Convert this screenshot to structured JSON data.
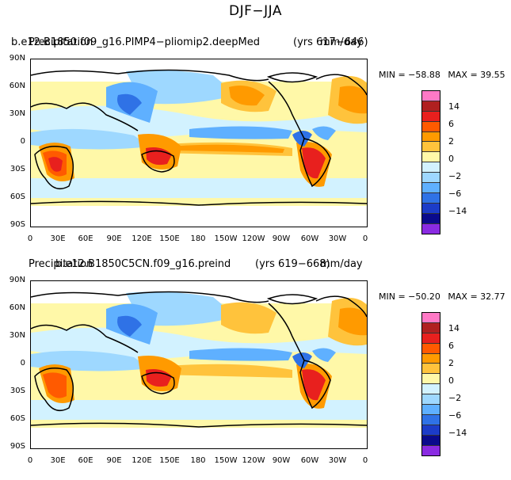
{
  "figure": {
    "title": "DJF−JJA"
  },
  "panels": [
    {
      "case_name": "b.e12.B1850.f09_g16.PIMP4−pliomip2.deepMed",
      "variable": "Precipitation",
      "years": "(yrs 617−646)",
      "units": "mm/day",
      "min_label": "MIN = −58.88",
      "max_label": "MAX =  39.55"
    },
    {
      "case_name": "b.e12.B1850C5CN.f09_g16.preind",
      "variable": "Precipitation",
      "years": "(yrs 619−668)",
      "units": "mm/day",
      "min_label": "MIN = −50.20",
      "max_label": "MAX =  32.77"
    }
  ],
  "axes": {
    "lat_labels": [
      "90N",
      "60N",
      "30N",
      "0",
      "30S",
      "60S",
      "90S"
    ],
    "lon_labels": [
      "0",
      "30E",
      "60E",
      "90E",
      "120E",
      "150E",
      "180",
      "150W",
      "120W",
      "90W",
      "60W",
      "30W",
      "0"
    ]
  },
  "colorbar": {
    "colors": [
      "#ff79c6",
      "#b02020",
      "#e8201e",
      "#ff5a00",
      "#ff9a00",
      "#ffc33c",
      "#fff8a8",
      "#d2f2ff",
      "#9ed8ff",
      "#5fb0ff",
      "#2f72e6",
      "#1c3cc8",
      "#0a0a8c",
      "#8a2be2"
    ],
    "tick_labels": [
      "14",
      "6",
      "2",
      "0",
      "−2",
      "−6",
      "−14"
    ]
  },
  "chart_data": {
    "type": "heatmap",
    "title": "DJF−JJA",
    "variable": "Precipitation",
    "units": "mm/day",
    "contour_levels": [
      -14,
      -10,
      -6,
      -4,
      -2,
      -1,
      0,
      1,
      2,
      4,
      6,
      10,
      14
    ],
    "x_range": [
      "0",
      "0"
    ],
    "y_range": [
      "90S",
      "90N"
    ],
    "panels": [
      {
        "case": "b.e12.B1850.f09_g16.PIMP4−pliomip2.deepMed",
        "min": -58.88,
        "max": 39.55
      },
      {
        "case": "b.e12.B1850C5CN.f09_g16.preind",
        "min": -50.2,
        "max": 32.77
      }
    ]
  }
}
